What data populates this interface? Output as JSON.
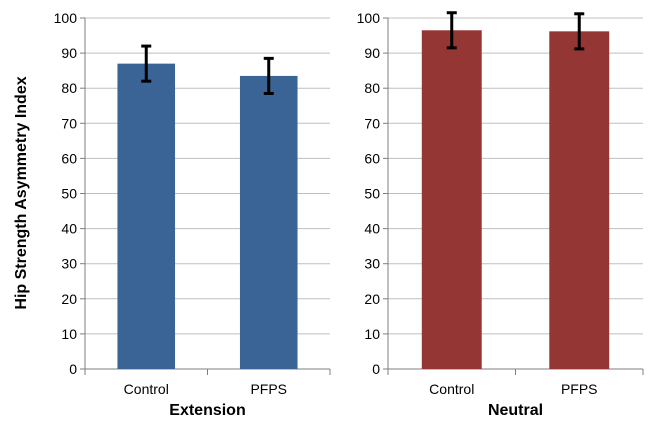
{
  "ylabel": "Hip Strength Asymmetry Index",
  "chart_data": [
    {
      "type": "bar",
      "xlabel": "Extension",
      "ylabel": "Hip Strength Asymmetry Index",
      "categories": [
        "Control",
        "PFPS"
      ],
      "values": [
        87,
        83.5
      ],
      "error": [
        5,
        5
      ],
      "color": "#3a6496",
      "ylim": [
        0,
        100
      ],
      "yticks": [
        0,
        10,
        20,
        30,
        40,
        50,
        60,
        70,
        80,
        90,
        100
      ],
      "grid": true
    },
    {
      "type": "bar",
      "xlabel": "Neutral",
      "ylabel": "",
      "categories": [
        "Control",
        "PFPS"
      ],
      "values": [
        96.5,
        96.2
      ],
      "error": [
        5,
        5
      ],
      "color": "#943634",
      "ylim": [
        0,
        100
      ],
      "yticks": [
        0,
        10,
        20,
        30,
        40,
        50,
        60,
        70,
        80,
        90,
        100
      ],
      "grid": true
    }
  ]
}
